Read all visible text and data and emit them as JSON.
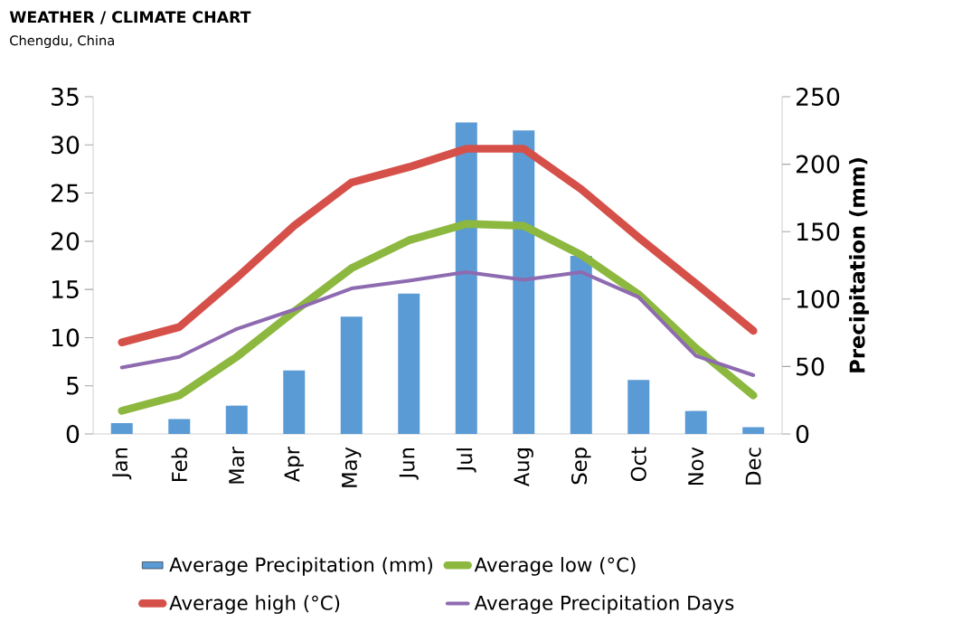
{
  "chart_data": {
    "type": "line",
    "title": "WEATHER / CLIMATE CHART",
    "subtitle": "Chengdu, China",
    "y2label": "Precipitation (mm)",
    "categories": [
      "Jan",
      "Feb",
      "Mar",
      "Apr",
      "May",
      "Jun",
      "Jul",
      "Aug",
      "Sep",
      "Oct",
      "Nov",
      "Dec"
    ],
    "ylim": [
      0,
      35
    ],
    "yticks": [
      0,
      5,
      10,
      15,
      20,
      25,
      30,
      35
    ],
    "y2lim": [
      0,
      250
    ],
    "y2ticks": [
      0,
      50,
      100,
      150,
      200,
      250
    ],
    "legend": "bottom",
    "series": [
      {
        "name": "Average Precipitation (mm)",
        "type": "bar",
        "axis": "y2",
        "color": "#5b9bd5",
        "values": [
          8,
          11,
          21,
          47,
          87,
          104,
          231,
          225,
          132,
          40,
          17,
          5
        ]
      },
      {
        "name": "Average low (°C)",
        "color": "#8cb83f",
        "values": [
          2.4,
          4.0,
          8.0,
          12.7,
          17.2,
          20.1,
          21.8,
          21.6,
          18.6,
          14.5,
          8.9,
          4.0
        ]
      },
      {
        "name": "Average high (°C)",
        "color": "#d6504a",
        "values": [
          9.5,
          11.1,
          16.2,
          21.6,
          26.1,
          27.7,
          29.6,
          29.6,
          25.4,
          20.4,
          15.6,
          10.7
        ]
      },
      {
        "name": "Average Precipitation Days",
        "color": "#8e6bb0",
        "values": [
          6.9,
          8.0,
          10.9,
          12.9,
          15.1,
          15.9,
          16.8,
          16.0,
          16.8,
          14.2,
          8.1,
          6.1
        ]
      }
    ]
  }
}
